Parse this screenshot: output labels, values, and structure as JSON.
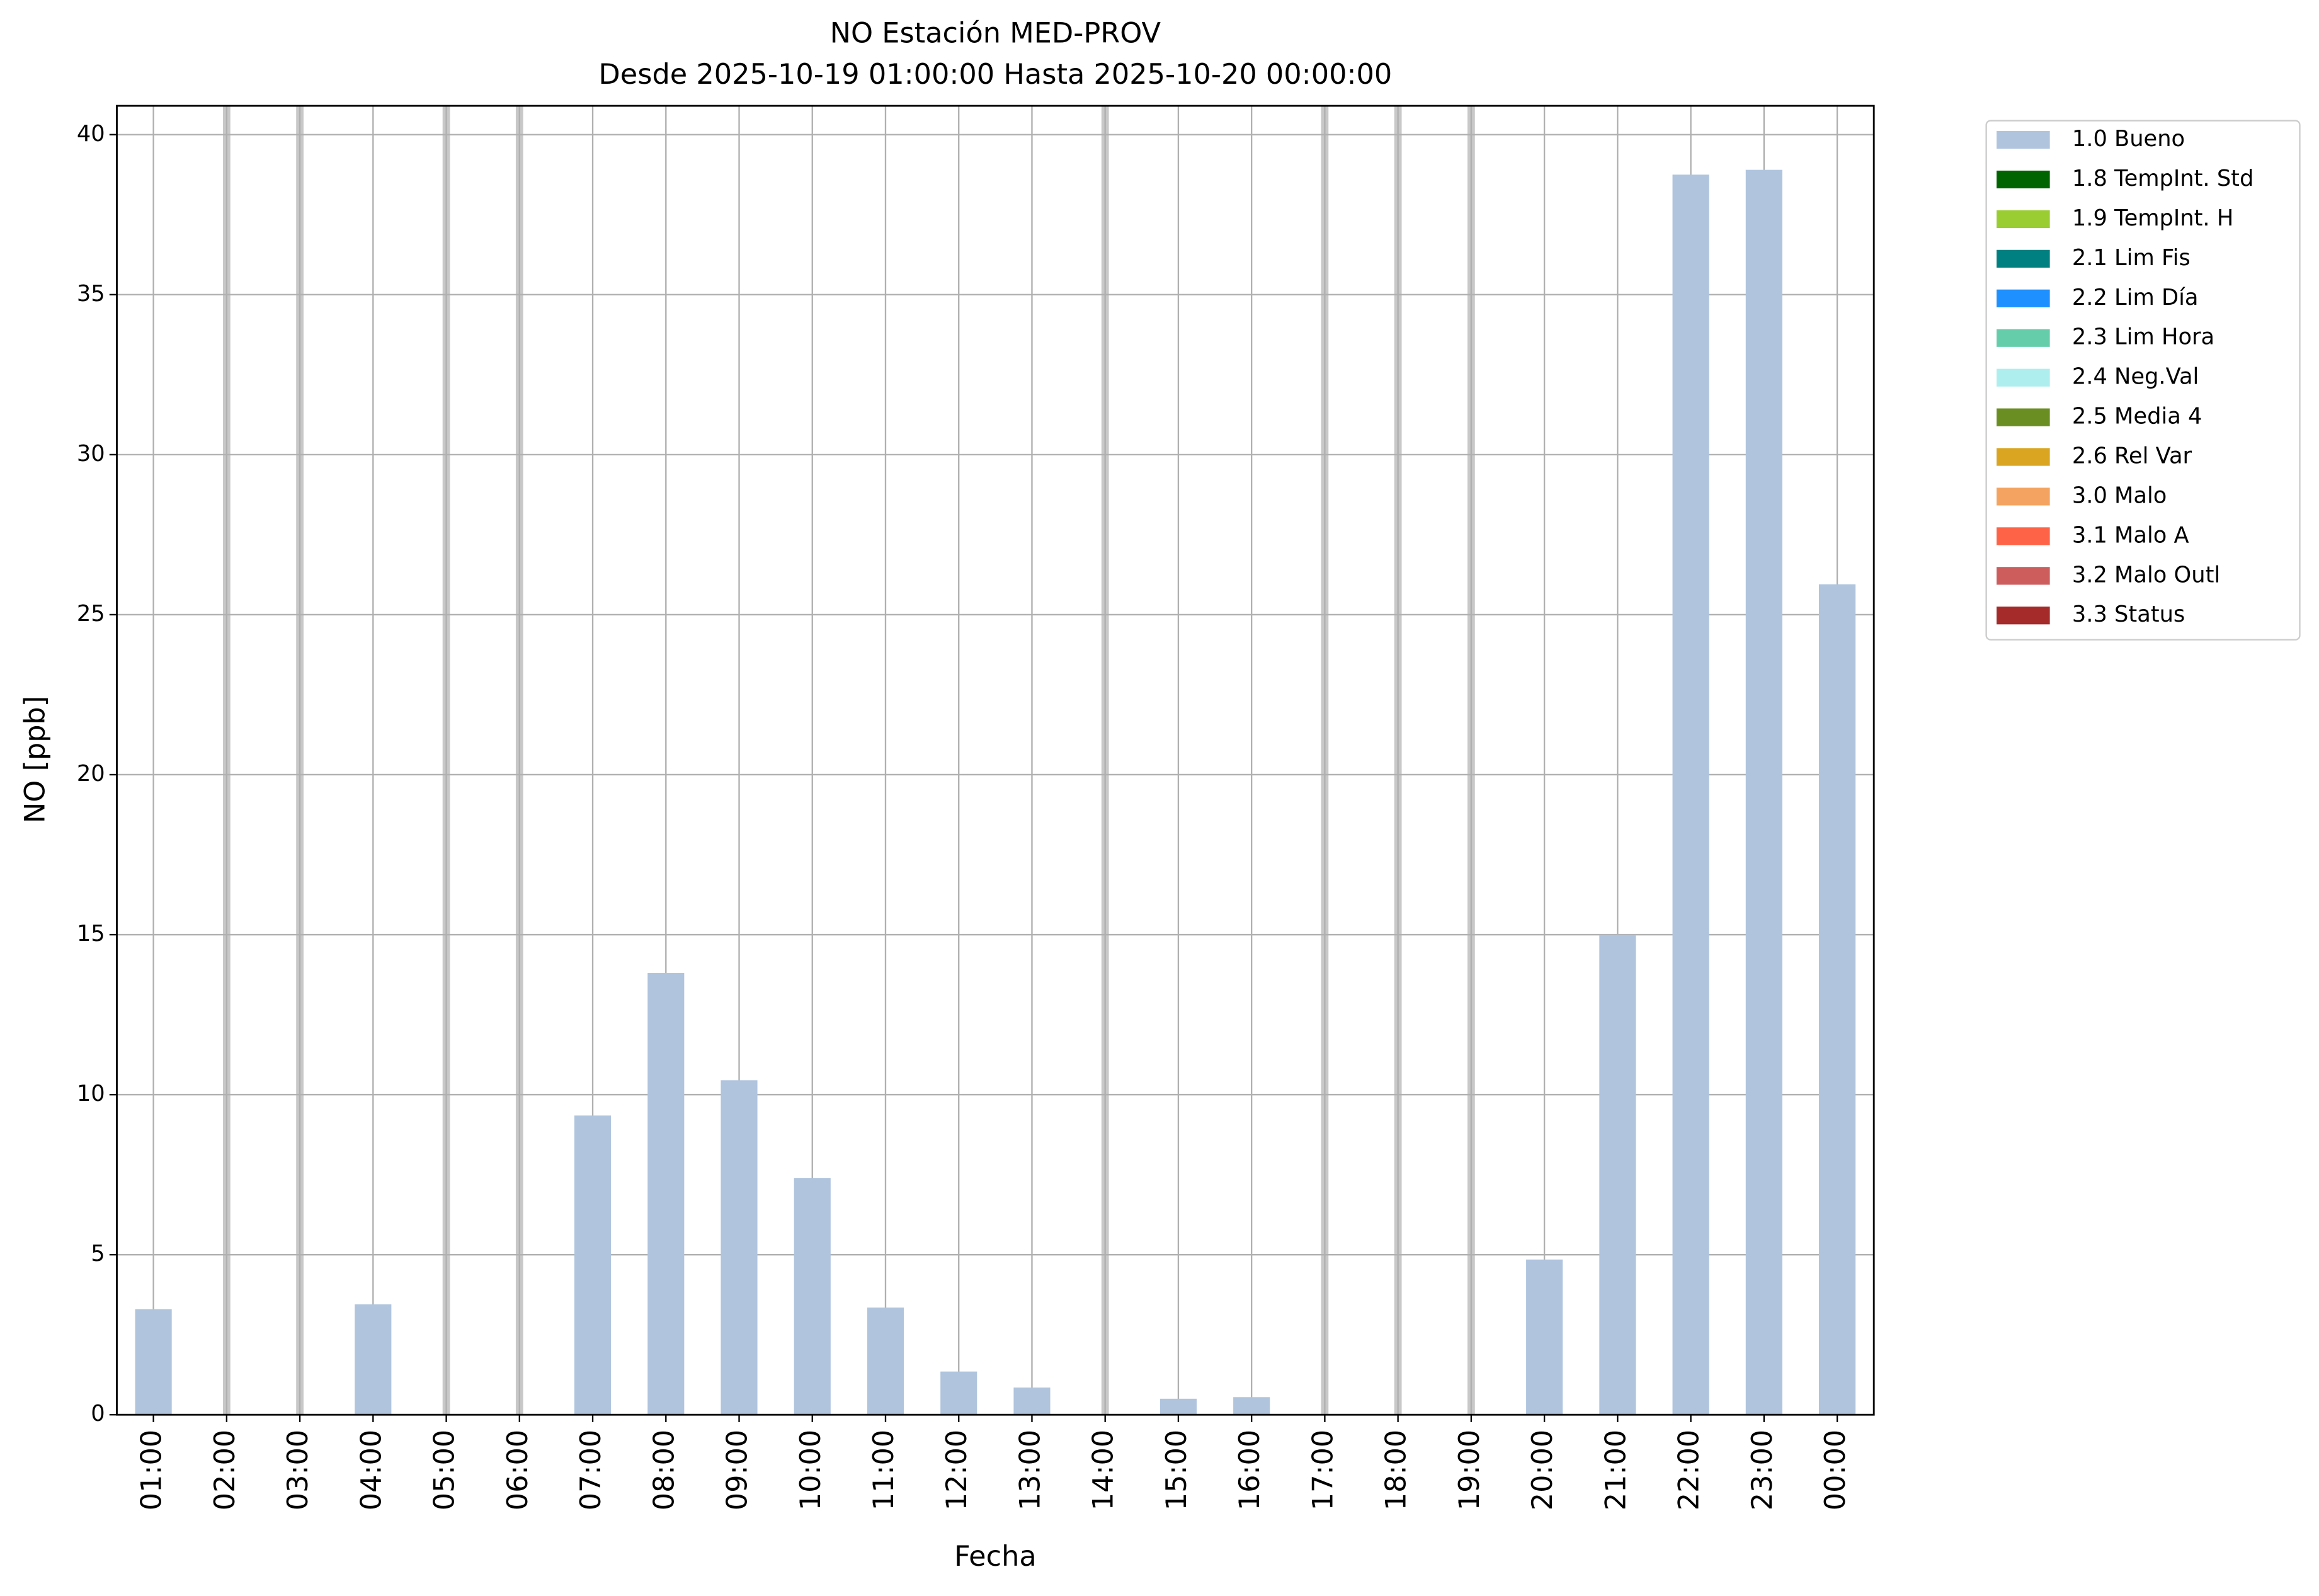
{
  "chart_data": {
    "type": "bar",
    "title": "NO Estación MED-PROV",
    "subtitle": "Desde 2025-10-19 01:00:00 Hasta 2025-10-20 00:00:00",
    "x_label": "Fecha",
    "y_label": "NO [ppb]",
    "categories": [
      "01:00",
      "02:00",
      "03:00",
      "04:00",
      "05:00",
      "06:00",
      "07:00",
      "08:00",
      "09:00",
      "10:00",
      "11:00",
      "12:00",
      "13:00",
      "14:00",
      "15:00",
      "16:00",
      "17:00",
      "18:00",
      "19:00",
      "20:00",
      "21:00",
      "22:00",
      "23:00",
      "00:00"
    ],
    "series": [
      {
        "name": "1.0 Bueno",
        "color": "#b0c4de",
        "values": [
          3.3,
          null,
          null,
          3.45,
          null,
          null,
          9.35,
          13.8,
          10.45,
          7.4,
          3.35,
          1.35,
          0.85,
          null,
          0.5,
          0.55,
          null,
          null,
          null,
          4.85,
          15.0,
          38.75,
          38.9,
          25.95
        ]
      },
      {
        "name": "1.8 TempInt. Std",
        "color": "#006400",
        "values": [
          null,
          null,
          null,
          null,
          null,
          null,
          null,
          null,
          null,
          null,
          null,
          null,
          null,
          null,
          null,
          null,
          null,
          null,
          null,
          null,
          null,
          null,
          null,
          null
        ]
      },
      {
        "name": "1.9 TempInt. H",
        "color": "#9acd32",
        "values": [
          null,
          null,
          null,
          null,
          null,
          null,
          null,
          null,
          null,
          null,
          null,
          null,
          null,
          null,
          null,
          null,
          null,
          null,
          null,
          null,
          null,
          null,
          null,
          null
        ]
      },
      {
        "name": "2.1 Lim Fis",
        "color": "#008080",
        "values": [
          null,
          null,
          null,
          null,
          null,
          null,
          null,
          null,
          null,
          null,
          null,
          null,
          null,
          null,
          null,
          null,
          null,
          null,
          null,
          null,
          null,
          null,
          null,
          null
        ]
      },
      {
        "name": "2.2 Lim Día",
        "color": "#1e90ff",
        "values": [
          null,
          null,
          null,
          null,
          null,
          null,
          null,
          null,
          null,
          null,
          null,
          null,
          null,
          null,
          null,
          null,
          null,
          null,
          null,
          null,
          null,
          null,
          null,
          null
        ]
      },
      {
        "name": "2.3 Lim Hora",
        "color": "#66cdaa",
        "values": [
          null,
          null,
          null,
          null,
          null,
          null,
          null,
          null,
          null,
          null,
          null,
          null,
          null,
          null,
          null,
          null,
          null,
          null,
          null,
          null,
          null,
          null,
          null,
          null
        ]
      },
      {
        "name": "2.4 Neg.Val",
        "color": "#afeeee",
        "values": [
          null,
          null,
          null,
          null,
          null,
          null,
          null,
          null,
          null,
          null,
          null,
          null,
          null,
          null,
          null,
          null,
          null,
          null,
          null,
          null,
          null,
          null,
          null,
          null
        ]
      },
      {
        "name": "2.5 Media 4",
        "color": "#6b8e23",
        "values": [
          null,
          null,
          null,
          null,
          null,
          null,
          null,
          null,
          null,
          null,
          null,
          null,
          null,
          null,
          null,
          null,
          null,
          null,
          null,
          null,
          null,
          null,
          null,
          null
        ]
      },
      {
        "name": "2.6 Rel Var",
        "color": "#daa520",
        "values": [
          null,
          null,
          null,
          null,
          null,
          null,
          null,
          null,
          null,
          null,
          null,
          null,
          null,
          null,
          null,
          null,
          null,
          null,
          null,
          null,
          null,
          null,
          null,
          null
        ]
      },
      {
        "name": "3.0 Malo",
        "color": "#f4a460",
        "values": [
          null,
          null,
          null,
          null,
          null,
          null,
          null,
          null,
          null,
          null,
          null,
          null,
          null,
          null,
          null,
          null,
          null,
          null,
          null,
          null,
          null,
          null,
          null,
          null
        ]
      },
      {
        "name": "3.1 Malo A",
        "color": "#ff6347",
        "values": [
          null,
          null,
          null,
          null,
          null,
          null,
          null,
          null,
          null,
          null,
          null,
          null,
          null,
          null,
          null,
          null,
          null,
          null,
          null,
          null,
          null,
          null,
          null,
          null
        ]
      },
      {
        "name": "3.2 Malo Outl",
        "color": "#cd5c5c",
        "values": [
          null,
          null,
          null,
          null,
          null,
          null,
          null,
          null,
          null,
          null,
          null,
          null,
          null,
          null,
          null,
          null,
          null,
          null,
          null,
          null,
          null,
          null,
          null,
          null
        ]
      },
      {
        "name": "3.3 Status",
        "color": "#a52a2a",
        "values": [
          null,
          null,
          null,
          null,
          null,
          null,
          null,
          null,
          null,
          null,
          null,
          null,
          null,
          null,
          null,
          null,
          null,
          null,
          null,
          null,
          null,
          null,
          null,
          null
        ]
      }
    ],
    "ylim": [
      0,
      40.9
    ],
    "yticks": [
      0,
      5,
      10,
      15,
      20,
      25,
      30,
      35,
      40
    ],
    "grid": true,
    "legend": "outside upper right"
  }
}
